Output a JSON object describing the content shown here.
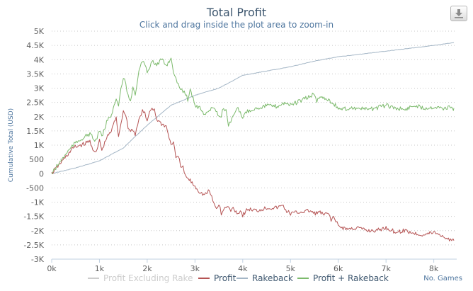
{
  "chart_data": {
    "type": "line",
    "title": "Total Profit",
    "subtitle": "Click and drag inside the plot area to zoom-in",
    "ylabel": "Cumulative Total (USD)",
    "xlabel": "No. Games",
    "xlim": [
      0,
      8480
    ],
    "ylim": [
      -3000,
      5000
    ],
    "x_ticks": [
      0,
      1000,
      2000,
      3000,
      4000,
      5000,
      6000,
      7000,
      8000
    ],
    "x_tick_labels": [
      "0k",
      "1k",
      "2k",
      "3k",
      "4k",
      "5k",
      "6k",
      "7k",
      "8k"
    ],
    "y_ticks": [
      -3000,
      -2500,
      -2000,
      -1500,
      -1000,
      -500,
      0,
      500,
      1000,
      1500,
      2000,
      2500,
      3000,
      3500,
      4000,
      4500,
      5000
    ],
    "y_tick_labels": [
      "-3K",
      "-2.5K",
      "-2K",
      "-1.5K",
      "-1K",
      "-500",
      "0",
      "500",
      "1K",
      "1.5K",
      "2K",
      "2.5K",
      "3K",
      "3.5K",
      "4K",
      "4.5K",
      "5K"
    ],
    "grid": "horizontal dotted",
    "legend_position": "bottom",
    "series": [
      {
        "name": "Profit Excluding Rake",
        "color": "#cccccc",
        "visible": false,
        "x": [],
        "y": []
      },
      {
        "name": "Profit",
        "color": "#b55454",
        "visible": true,
        "x": [
          0,
          150,
          300,
          450,
          600,
          700,
          800,
          900,
          950,
          1000,
          1050,
          1150,
          1250,
          1350,
          1400,
          1450,
          1500,
          1550,
          1600,
          1650,
          1700,
          1750,
          1800,
          1850,
          1900,
          1950,
          2000,
          2050,
          2100,
          2150,
          2200,
          2300,
          2400,
          2500,
          2550,
          2600,
          2650,
          2700,
          2750,
          2800,
          2900,
          3000,
          3100,
          3200,
          3300,
          3350,
          3400,
          3450,
          3500,
          3550,
          3600,
          3650,
          3700,
          3750,
          3800,
          3900,
          3950,
          4000,
          4100,
          4300,
          4500,
          4700,
          4800,
          4850,
          4900,
          5000,
          5200,
          5400,
          5500,
          5600,
          5700,
          5800,
          5850,
          5900,
          5950,
          6000,
          6100,
          6200,
          6400,
          6600,
          6800,
          7000,
          7200,
          7400,
          7600,
          7800,
          8000,
          8200,
          8350,
          8400,
          8420
        ],
        "y": [
          0,
          300,
          600,
          900,
          1000,
          1050,
          1150,
          700,
          800,
          1200,
          800,
          1250,
          1500,
          2000,
          1300,
          1800,
          2150,
          2100,
          1600,
          1500,
          1550,
          1400,
          1700,
          2000,
          2200,
          2100,
          1800,
          2200,
          2300,
          2250,
          1900,
          1750,
          1650,
          1000,
          1150,
          500,
          600,
          300,
          200,
          -100,
          -250,
          -450,
          -650,
          -750,
          -600,
          -850,
          -1050,
          -1250,
          -1050,
          -1400,
          -1300,
          -1150,
          -1200,
          -1300,
          -1200,
          -1400,
          -1300,
          -1450,
          -1250,
          -1300,
          -1200,
          -1200,
          -1150,
          -1100,
          -1300,
          -1400,
          -1350,
          -1300,
          -1400,
          -1350,
          -1450,
          -1400,
          -1600,
          -1550,
          -1650,
          -1850,
          -1900,
          -1950,
          -1900,
          -2000,
          -2000,
          -1900,
          -2050,
          -2000,
          -2100,
          -2150,
          -2050,
          -2200,
          -2350,
          -2250,
          -2350
        ]
      },
      {
        "name": "Rakeback",
        "color": "#a4b6c6",
        "visible": true,
        "x": [
          0,
          500,
          1000,
          1500,
          2000,
          2500,
          3000,
          3500,
          4000,
          4500,
          5000,
          5500,
          6000,
          6500,
          7000,
          7500,
          8000,
          8420
        ],
        "y": [
          0,
          200,
          450,
          900,
          1700,
          2400,
          2750,
          3000,
          3450,
          3600,
          3750,
          3950,
          4100,
          4200,
          4300,
          4400,
          4500,
          4600
        ]
      },
      {
        "name": "Profit + Rakeback",
        "color": "#7cba6c",
        "visible": true,
        "x": [
          0,
          150,
          300,
          450,
          600,
          700,
          800,
          900,
          950,
          1000,
          1050,
          1150,
          1250,
          1350,
          1400,
          1450,
          1500,
          1550,
          1600,
          1650,
          1700,
          1750,
          1800,
          1850,
          1900,
          1950,
          2000,
          2100,
          2200,
          2300,
          2400,
          2500,
          2550,
          2600,
          2650,
          2700,
          2750,
          2800,
          2850,
          2900,
          3000,
          3100,
          3200,
          3300,
          3400,
          3500,
          3550,
          3600,
          3650,
          3700,
          3750,
          3800,
          3850,
          3900,
          3950,
          4000,
          4100,
          4300,
          4500,
          4700,
          4900,
          5000,
          5200,
          5400,
          5500,
          5550,
          5600,
          5700,
          5800,
          5900,
          6000,
          6100,
          6200,
          6400,
          6600,
          6800,
          7000,
          7200,
          7400,
          7600,
          7800,
          8000,
          8200,
          8300,
          8350,
          8400,
          8420
        ],
        "y": [
          0,
          350,
          700,
          1000,
          1200,
          1300,
          1400,
          1150,
          1250,
          1550,
          1250,
          1800,
          2100,
          2600,
          2300,
          3000,
          3300,
          3200,
          2700,
          2600,
          3000,
          2700,
          3300,
          3800,
          3900,
          3850,
          3500,
          4000,
          3800,
          4000,
          3800,
          4050,
          3600,
          3300,
          3100,
          3000,
          2900,
          2800,
          2600,
          3000,
          2400,
          2300,
          2100,
          2200,
          2350,
          2000,
          2050,
          2300,
          2200,
          1700,
          1800,
          2000,
          2150,
          2300,
          2100,
          2000,
          2200,
          2300,
          2400,
          2350,
          2500,
          2400,
          2550,
          2700,
          2800,
          2500,
          2700,
          2650,
          2600,
          2450,
          2300,
          2250,
          2300,
          2300,
          2250,
          2300,
          2400,
          2300,
          2250,
          2400,
          2300,
          2350,
          2300,
          2300,
          2350,
          2250,
          2300
        ]
      }
    ]
  },
  "toolbar": {
    "export_icon": "download-icon"
  }
}
